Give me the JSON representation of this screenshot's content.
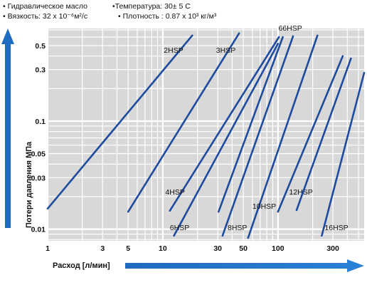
{
  "header": {
    "line1_left": "• Гидравлическое масло",
    "line1_right": "•Температура: 30± 5 C",
    "line2_left": "• Вязкость:  32 x 10⁻⁶м²/c",
    "line2_right": "• Плотность : 0.87 x 10³ кг/м³"
  },
  "chart_data": {
    "type": "line",
    "title": "",
    "xlabel": "Расход   [л/мин]",
    "ylabel": "Потери давления  МПа",
    "xscale": "log",
    "yscale": "log",
    "xlim": [
      1,
      560
    ],
    "ylim": [
      0.0078,
      0.72
    ],
    "grid": true,
    "x_ticks": [
      1,
      3,
      5,
      10,
      30,
      50,
      100,
      300
    ],
    "x_tick_labels": [
      "1",
      "3",
      "5",
      "10",
      "30",
      "50",
      "100",
      "300"
    ],
    "y_ticks": [
      0.01,
      0.03,
      0.05,
      0.1,
      0.3,
      0.5
    ],
    "y_tick_labels": [
      "0.01",
      "0.03",
      "0.05",
      "0.1",
      "0.3",
      "0.5"
    ],
    "series": [
      {
        "name": "2HSP",
        "x": [
          1.0,
          18.0
        ],
        "y": [
          0.0155,
          0.62
        ],
        "label_at": [
          10.2,
          0.43
        ]
      },
      {
        "name": "3HSP",
        "x": [
          5.0,
          46.0
        ],
        "y": [
          0.0145,
          0.65
        ],
        "label_at": [
          29.0,
          0.43
        ]
      },
      {
        "name": "4HSP",
        "x": [
          11.5,
          102.0
        ],
        "y": [
          0.0148,
          0.6
        ],
        "label_at": [
          10.5,
          0.021
        ]
      },
      {
        "name": "6HSP",
        "x": [
          12.5,
          100.0
        ],
        "y": [
          0.0087,
          0.52
        ],
        "label_at": [
          11.5,
          0.0098
        ]
      },
      {
        "name": "66HSP",
        "x": [
          30.5,
          110.0
        ],
        "y": [
          0.0145,
          0.6
        ],
        "label_at": [
          101.0,
          0.69
        ]
      },
      {
        "name": "8HSP",
        "x": [
          33.0,
          135.0
        ],
        "y": [
          0.0087,
          0.61
        ],
        "label_at": [
          36.5,
          0.0098
        ]
      },
      {
        "name": "10HSP",
        "x": [
          55.0,
          220.0
        ],
        "y": [
          0.0083,
          0.62
        ],
        "label_at": [
          60.0,
          0.0155
        ]
      },
      {
        "name": "12HSP",
        "x": [
          100.0,
          365.0
        ],
        "y": [
          0.0145,
          0.4
        ],
        "label_at": [
          125.0,
          0.021
        ]
      },
      {
        "name": "16HSP",
        "x": [
          240.0,
          560.0
        ],
        "y": [
          0.0087,
          0.28
        ],
        "label_at": [
          254.0,
          0.0098
        ]
      },
      {
        "name": "",
        "x": [
          145.0,
          430.0
        ],
        "y": [
          0.015,
          0.38
        ]
      }
    ]
  },
  "colors": {
    "plot_background": "#d8d8d8",
    "grid_major": "#ffffff",
    "series_line": "#1f4b9e",
    "arrow": "#1f6bc0"
  }
}
